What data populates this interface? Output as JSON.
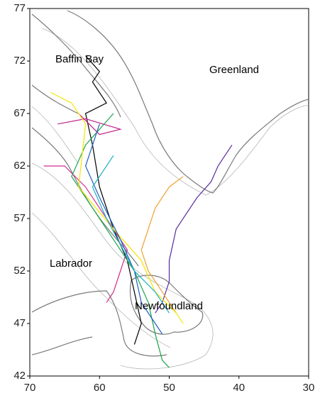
{
  "chart_data": {
    "type": "map",
    "xlim": [
      70,
      30
    ],
    "ylim": [
      42,
      77
    ],
    "xticks": [
      70,
      60,
      50,
      40,
      30
    ],
    "yticks": [
      42,
      47,
      52,
      57,
      62,
      67,
      72,
      77
    ],
    "annotations": [
      "Baffin Bay",
      "Greenland",
      "Labrador",
      "Newfoundland"
    ],
    "series": [
      {
        "color": "#000000",
        "x": [
          62,
          60,
          61,
          59,
          62,
          61,
          60,
          58,
          56,
          55,
          54,
          55
        ],
        "values": [
          72.5,
          71,
          70,
          68,
          67,
          64,
          60,
          56,
          53,
          50,
          47,
          45
        ]
      },
      {
        "color": "#5b2a9e",
        "x": [
          41,
          42,
          43,
          44,
          46,
          49,
          50,
          50,
          51,
          52
        ],
        "values": [
          64,
          63,
          62,
          60.5,
          59,
          56,
          53,
          51,
          49,
          48
        ]
      },
      {
        "color": "#f0a030",
        "x": [
          48,
          50,
          52,
          53,
          54,
          53,
          51,
          49
        ],
        "values": [
          61,
          60,
          58,
          56,
          54,
          52,
          50,
          48
        ]
      },
      {
        "color": "#d02c8c",
        "x": [
          68,
          65,
          62,
          60,
          58,
          56,
          57,
          58,
          59
        ],
        "values": [
          62,
          62,
          60,
          58,
          56,
          54,
          52,
          50,
          49
        ]
      },
      {
        "color": "#c0208a",
        "x": [
          66,
          62,
          57,
          60,
          63
        ],
        "values": [
          66,
          66.5,
          65.5,
          65,
          67
        ]
      },
      {
        "color": "#1aa64a",
        "x": [
          58,
          62,
          64,
          61,
          58,
          55,
          53,
          52,
          51,
          50
        ],
        "values": [
          67,
          64,
          61,
          58,
          55,
          52,
          49,
          46,
          43.5,
          42.8
        ]
      },
      {
        "color": "#f2e600",
        "x": [
          67,
          64,
          62,
          63,
          58,
          54,
          52,
          49,
          48
        ],
        "values": [
          69,
          68,
          66,
          60,
          56,
          53,
          50,
          48,
          47
        ]
      },
      {
        "color": "#1f5fbf",
        "x": [
          60,
          62,
          60,
          57,
          55,
          54,
          52,
          51
        ],
        "values": [
          66,
          62,
          59,
          55,
          52,
          49,
          47,
          46
        ]
      },
      {
        "color": "#16b0c8",
        "x": [
          58,
          61,
          59,
          55,
          52,
          50
        ],
        "values": [
          63,
          60,
          57,
          52,
          50,
          48
        ]
      }
    ]
  }
}
